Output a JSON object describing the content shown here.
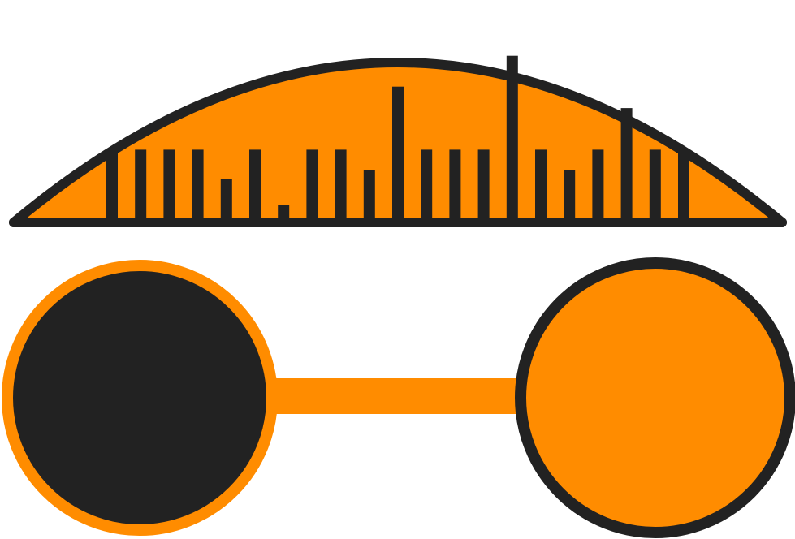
{
  "logo": {
    "colors": {
      "orange": "#FF8C00",
      "dark": "#222222",
      "background": "#FFFFFF"
    },
    "dome": {
      "bars": [
        {
          "level": 0.53
        },
        {
          "level": 0.53
        },
        {
          "level": 0.53
        },
        {
          "level": 0.53
        },
        {
          "level": 0.31
        },
        {
          "level": 0.53
        },
        {
          "level": 0.12
        },
        {
          "level": 0.53
        },
        {
          "level": 0.53
        },
        {
          "level": 0.38
        },
        {
          "level": 1.0
        },
        {
          "level": 0.53
        },
        {
          "level": 0.53
        },
        {
          "level": 0.53
        },
        {
          "level": 1.23
        },
        {
          "level": 0.53
        },
        {
          "level": 0.38
        },
        {
          "level": 0.53
        },
        {
          "level": 0.84
        },
        {
          "level": 0.53
        },
        {
          "level": 0.53
        }
      ]
    },
    "left_node": {
      "fill": "dark"
    },
    "right_node": {
      "fill": "orange"
    }
  }
}
